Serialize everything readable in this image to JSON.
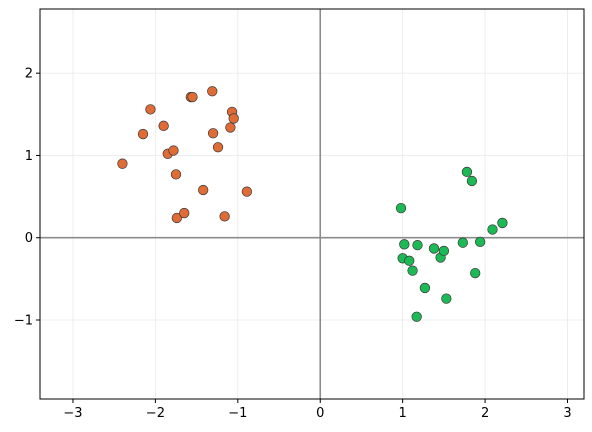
{
  "chart_data": {
    "type": "scatter",
    "title": "",
    "xlabel": "",
    "ylabel": "",
    "xlim": [
      -3.4,
      3.2
    ],
    "ylim": [
      -1.96,
      2.78
    ],
    "x_ticks": [
      -3,
      -2,
      -1,
      0,
      1,
      2,
      3
    ],
    "y_ticks": [
      -1,
      0,
      1,
      2
    ],
    "x_tick_labels": [
      "−3",
      "−2",
      "−1",
      "0",
      "1",
      "2",
      "3"
    ],
    "y_tick_labels": [
      "−1",
      "0",
      "1",
      "2"
    ],
    "grid": true,
    "zero_lines": true,
    "legend": "none",
    "series": [
      {
        "color": "#e06c35",
        "points": [
          {
            "x": -2.4,
            "y": 0.9
          },
          {
            "x": -2.15,
            "y": 1.26
          },
          {
            "x": -2.06,
            "y": 1.56
          },
          {
            "x": -1.9,
            "y": 1.36
          },
          {
            "x": -1.85,
            "y": 1.02
          },
          {
            "x": -1.78,
            "y": 1.06
          },
          {
            "x": -1.75,
            "y": 0.77
          },
          {
            "x": -1.74,
            "y": 0.24
          },
          {
            "x": -1.65,
            "y": 0.3
          },
          {
            "x": -1.57,
            "y": 1.71
          },
          {
            "x": -1.55,
            "y": 1.71
          },
          {
            "x": -1.42,
            "y": 0.58
          },
          {
            "x": -1.31,
            "y": 1.78
          },
          {
            "x": -1.3,
            "y": 1.27
          },
          {
            "x": -1.24,
            "y": 1.1
          },
          {
            "x": -1.16,
            "y": 0.26
          },
          {
            "x": -1.09,
            "y": 1.34
          },
          {
            "x": -1.07,
            "y": 1.53
          },
          {
            "x": -1.05,
            "y": 1.45
          },
          {
            "x": -0.89,
            "y": 0.56
          }
        ]
      },
      {
        "color": "#1db954",
        "points": [
          {
            "x": 0.98,
            "y": 0.36
          },
          {
            "x": 1.0,
            "y": -0.25
          },
          {
            "x": 1.02,
            "y": -0.08
          },
          {
            "x": 1.08,
            "y": -0.28
          },
          {
            "x": 1.12,
            "y": -0.4
          },
          {
            "x": 1.17,
            "y": -0.96
          },
          {
            "x": 1.18,
            "y": -0.09
          },
          {
            "x": 1.27,
            "y": -0.61
          },
          {
            "x": 1.38,
            "y": -0.13
          },
          {
            "x": 1.46,
            "y": -0.24
          },
          {
            "x": 1.5,
            "y": -0.16
          },
          {
            "x": 1.53,
            "y": -0.74
          },
          {
            "x": 1.73,
            "y": -0.06
          },
          {
            "x": 1.78,
            "y": 0.8
          },
          {
            "x": 1.84,
            "y": 0.69
          },
          {
            "x": 1.88,
            "y": -0.43
          },
          {
            "x": 1.94,
            "y": -0.05
          },
          {
            "x": 2.09,
            "y": 0.1
          },
          {
            "x": 2.21,
            "y": 0.18
          }
        ]
      }
    ]
  }
}
